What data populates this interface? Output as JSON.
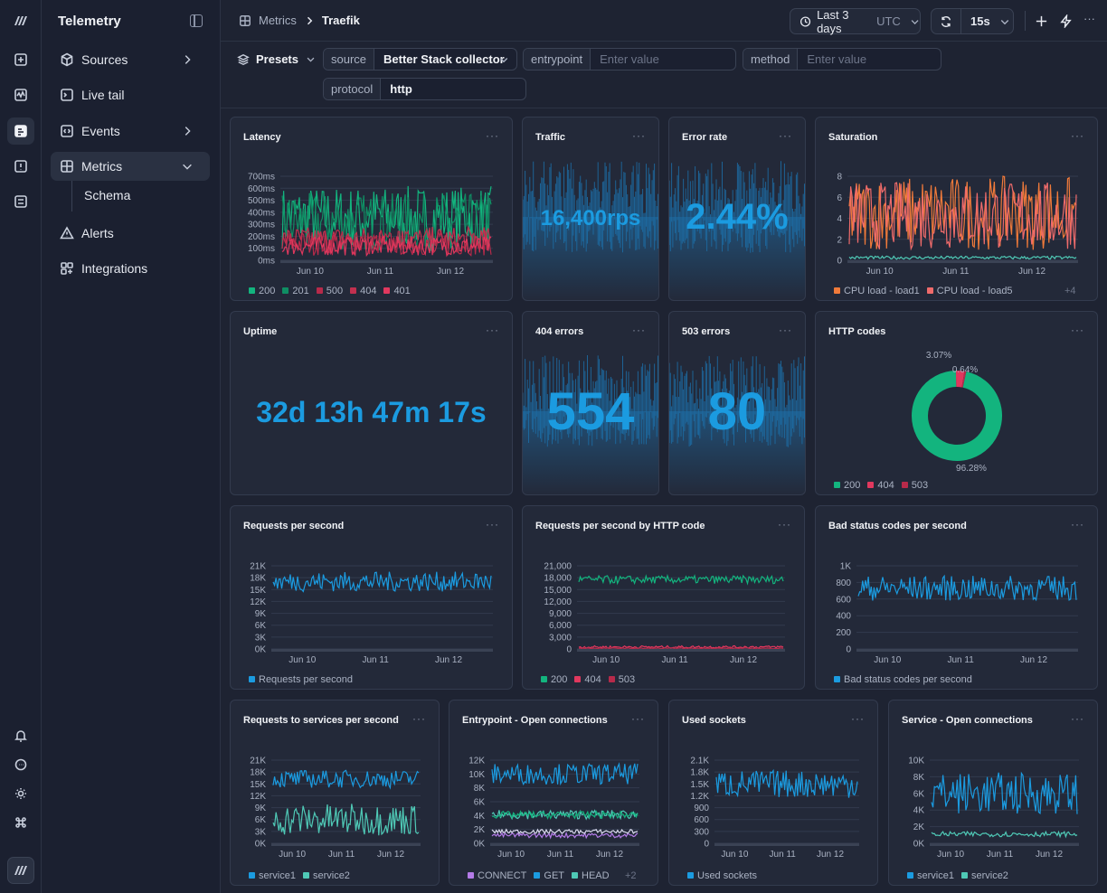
{
  "app": {
    "title": "Telemetry"
  },
  "sidebar": {
    "items": [
      {
        "label": "Sources",
        "icon": "cube-icon",
        "chevron": true
      },
      {
        "label": "Live tail",
        "icon": "terminal-icon"
      },
      {
        "label": "Events",
        "icon": "code-icon",
        "chevron": true
      },
      {
        "label": "Metrics",
        "icon": "grid-icon",
        "chevron": true,
        "open": true,
        "selected": true
      },
      {
        "label": "Alerts",
        "icon": "warning-icon"
      },
      {
        "label": "Integrations",
        "icon": "apps-icon"
      }
    ],
    "sub": {
      "label": "Schema"
    }
  },
  "breadcrumb": {
    "root": "Metrics",
    "current": "Traefik"
  },
  "toolbar": {
    "range_label": "Last 3 days",
    "range_tz": "UTC",
    "refresh": "15s"
  },
  "filters": {
    "presets": "Presets",
    "chips": [
      {
        "key": "source",
        "value": "Better Stack collector",
        "dropdown": true
      },
      {
        "key": "entrypoint",
        "placeholder": "Enter value"
      },
      {
        "key": "method",
        "placeholder": "Enter value"
      },
      {
        "key": "protocol",
        "value": "http"
      }
    ]
  },
  "colors": {
    "blue": "#1b9be0",
    "green": "#13b47e",
    "teal": "#4fc9b6",
    "red": "#e0385e",
    "darkred": "#b72a4a",
    "orange": "#f07a3a",
    "salmon": "#ef6b6b",
    "purple": "#b47be8"
  },
  "panels": {
    "latency": {
      "title": "Latency",
      "legend": [
        "200",
        "201",
        "500",
        "404",
        "401"
      ]
    },
    "traffic": {
      "title": "Traffic",
      "value": "16,400rps"
    },
    "error_rate": {
      "title": "Error rate",
      "value": "2.44%"
    },
    "saturation": {
      "title": "Saturation",
      "legend": [
        "CPU load - load1",
        "CPU load - load5"
      ],
      "more": "+4"
    },
    "uptime": {
      "title": "Uptime",
      "value": "32d 13h 47m 17s"
    },
    "e404": {
      "title": "404 errors",
      "value": "554"
    },
    "e503": {
      "title": "503 errors",
      "value": "80"
    },
    "http_codes": {
      "title": "HTTP codes",
      "legend": [
        "200",
        "404",
        "503"
      ]
    },
    "rps": {
      "title": "Requests per second",
      "legend": [
        "Requests per second"
      ]
    },
    "rps_code": {
      "title": "Requests per second by HTTP code",
      "legend": [
        "200",
        "404",
        "503"
      ]
    },
    "bad": {
      "title": "Bad status codes per second",
      "legend": [
        "Bad status codes per second"
      ]
    },
    "svc": {
      "title": "Requests to services per second",
      "legend": [
        "service1",
        "service2"
      ]
    },
    "ep": {
      "title": "Entrypoint - Open connections",
      "legend": [
        "CONNECT",
        "GET",
        "HEAD"
      ],
      "more": "+2"
    },
    "sockets": {
      "title": "Used sockets",
      "legend": [
        "Used sockets"
      ]
    },
    "svc_conn": {
      "title": "Service - Open connections",
      "legend": [
        "service1",
        "service2"
      ]
    }
  },
  "chart_data": [
    {
      "id": "latency",
      "type": "line",
      "x_ticks": [
        "Jun 10",
        "Jun 11",
        "Jun 12"
      ],
      "y_ticks": [
        "0ms",
        "100ms",
        "200ms",
        "300ms",
        "400ms",
        "500ms",
        "600ms",
        "700ms"
      ],
      "ylim": [
        0,
        700
      ],
      "series": [
        {
          "name": "200",
          "color": "#13b47e",
          "low": 100,
          "high": 620
        },
        {
          "name": "201",
          "color": "#0f8e63",
          "low": 80,
          "high": 560
        },
        {
          "name": "500",
          "color": "#b72a4a",
          "low": 40,
          "high": 250
        },
        {
          "name": "404",
          "color": "#c2304f",
          "low": 60,
          "high": 280
        },
        {
          "name": "401",
          "color": "#e0385e",
          "low": 40,
          "high": 200
        }
      ]
    },
    {
      "id": "saturation",
      "type": "line",
      "x_ticks": [
        "Jun 10",
        "Jun 11",
        "Jun 12"
      ],
      "y_ticks": [
        "0",
        "2",
        "4",
        "6",
        "8"
      ],
      "ylim": [
        0,
        8
      ],
      "series": [
        {
          "name": "CPU load - load1",
          "color": "#f07a3a",
          "low": 1,
          "high": 8
        },
        {
          "name": "CPU load - load5",
          "color": "#ef6b6b",
          "low": 1,
          "high": 7.5
        },
        {
          "name": "",
          "color": "#4fc9b6",
          "low": 0.1,
          "high": 0.4
        }
      ]
    },
    {
      "id": "http_codes",
      "type": "pie",
      "slices": [
        {
          "label": "200",
          "value": 96.28,
          "color": "#13b47e"
        },
        {
          "label": "404",
          "value": 3.07,
          "color": "#e0385e"
        },
        {
          "label": "503",
          "value": 0.64,
          "color": "#b72a4a"
        }
      ],
      "labels": [
        "3.07%",
        "0.64%",
        "96.28%"
      ]
    },
    {
      "id": "rps",
      "type": "line",
      "x_ticks": [
        "Jun 10",
        "Jun 11",
        "Jun 12"
      ],
      "y_ticks": [
        "0K",
        "3K",
        "6K",
        "9K",
        "12K",
        "15K",
        "18K",
        "21K"
      ],
      "ylim": [
        0,
        21000
      ],
      "series": [
        {
          "name": "Requests per second",
          "color": "#1b9be0",
          "low": 14500,
          "high": 19500
        }
      ]
    },
    {
      "id": "rps_code",
      "type": "line",
      "x_ticks": [
        "Jun 10",
        "Jun 11",
        "Jun 12"
      ],
      "y_ticks": [
        "0",
        "3,000",
        "6,000",
        "9,000",
        "12,000",
        "15,000",
        "18,000",
        "21,000"
      ],
      "ylim": [
        0,
        21000
      ],
      "series": [
        {
          "name": "200",
          "color": "#13b47e",
          "low": 16500,
          "high": 18500
        },
        {
          "name": "404",
          "color": "#e0385e",
          "low": 200,
          "high": 800
        },
        {
          "name": "503",
          "color": "#b72a4a",
          "low": 50,
          "high": 300
        }
      ]
    },
    {
      "id": "bad",
      "type": "line",
      "x_ticks": [
        "Jun 10",
        "Jun 11",
        "Jun 12"
      ],
      "y_ticks": [
        "0",
        "200",
        "400",
        "600",
        "800",
        "1K"
      ],
      "ylim": [
        0,
        1000
      ],
      "series": [
        {
          "name": "Bad status codes per second",
          "color": "#1b9be0",
          "low": 580,
          "high": 880
        }
      ]
    },
    {
      "id": "svc",
      "type": "line",
      "x_ticks": [
        "Jun 10",
        "Jun 11",
        "Jun 12"
      ],
      "y_ticks": [
        "0K",
        "3K",
        "6K",
        "9K",
        "12K",
        "15K",
        "18K",
        "21K"
      ],
      "ylim": [
        0,
        21000
      ],
      "series": [
        {
          "name": "service1",
          "color": "#1b9be0",
          "low": 14000,
          "high": 18500
        },
        {
          "name": "service2",
          "color": "#4fc9b6",
          "low": 2000,
          "high": 10000
        }
      ]
    },
    {
      "id": "ep",
      "type": "line",
      "x_ticks": [
        "Jun 10",
        "Jun 11",
        "Jun 12"
      ],
      "y_ticks": [
        "0K",
        "2K",
        "4K",
        "6K",
        "8K",
        "10K",
        "12K"
      ],
      "ylim": [
        0,
        12000
      ],
      "series": [
        {
          "name": "CONNECT",
          "color": "#b47be8",
          "low": 800,
          "high": 1500
        },
        {
          "name": "GET",
          "color": "#1b9be0",
          "low": 8500,
          "high": 11500
        },
        {
          "name": "HEAD",
          "color": "#4fc9b6",
          "low": 3500,
          "high": 4800
        },
        {
          "name": "",
          "color": "#13b47e",
          "low": 3600,
          "high": 4600
        },
        {
          "name": "",
          "color": "#dcdcf0",
          "low": 1400,
          "high": 2000
        }
      ]
    },
    {
      "id": "sockets",
      "type": "line",
      "x_ticks": [
        "Jun 10",
        "Jun 11",
        "Jun 12"
      ],
      "y_ticks": [
        "0",
        "300",
        "600",
        "900",
        "1.2K",
        "1.5K",
        "1.8K",
        "2.1K"
      ],
      "ylim": [
        0,
        2100
      ],
      "series": [
        {
          "name": "Used sockets",
          "color": "#1b9be0",
          "low": 1150,
          "high": 1850
        }
      ]
    },
    {
      "id": "svc_conn",
      "type": "line",
      "x_ticks": [
        "Jun 10",
        "Jun 11",
        "Jun 12"
      ],
      "y_ticks": [
        "0K",
        "2K",
        "4K",
        "6K",
        "8K",
        "10K"
      ],
      "ylim": [
        0,
        10000
      ],
      "series": [
        {
          "name": "service1",
          "color": "#1b9be0",
          "low": 3500,
          "high": 8500
        },
        {
          "name": "service2",
          "color": "#4fc9b6",
          "low": 800,
          "high": 1400
        }
      ]
    }
  ]
}
